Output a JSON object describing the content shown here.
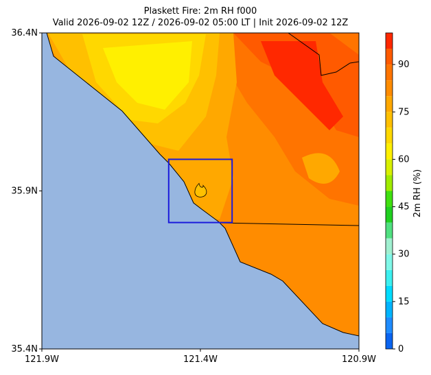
{
  "title": "Plaskett Fire: 2m RH f000",
  "subtitle": "Valid 2026-09-02 12Z / 2026-09-02 05:00 LT | Init 2026-09-02 12Z",
  "map": {
    "xlim": [
      -121.9,
      -120.9
    ],
    "ylim": [
      35.4,
      36.4
    ],
    "xticks": [
      {
        "value": -121.9,
        "label": "121.9W"
      },
      {
        "value": -121.4,
        "label": "121.4W"
      },
      {
        "value": -120.9,
        "label": "120.9W"
      }
    ],
    "yticks": [
      {
        "value": 35.4,
        "label": "35.4N"
      },
      {
        "value": 35.9,
        "label": "35.9N"
      },
      {
        "value": 36.4,
        "label": "36.4N"
      }
    ],
    "box": {
      "color": "#1a1adc",
      "lon": [
        -121.5,
        -121.3
      ],
      "lat": [
        35.8,
        36.0
      ]
    },
    "fire": {
      "lon": -121.4,
      "lat": 35.9
    }
  },
  "colorbar": {
    "label": "2m RH (%)",
    "lim": [
      0,
      100
    ],
    "ticks": [
      0,
      15,
      30,
      45,
      60,
      75,
      90
    ],
    "levels": [
      0,
      5,
      10,
      15,
      20,
      25,
      30,
      35,
      40,
      45,
      50,
      55,
      60,
      65,
      70,
      75,
      80,
      85,
      90,
      95,
      100
    ],
    "colors": [
      "#0a64f0",
      "#1e8cff",
      "#00b4ff",
      "#00dcff",
      "#3cf0f0",
      "#80f8e8",
      "#a0f0d0",
      "#50e080",
      "#20d020",
      "#40e010",
      "#a0ec00",
      "#d8f000",
      "#fff000",
      "#ffd800",
      "#ffc000",
      "#ffa800",
      "#ff8c00",
      "#ff7400",
      "#ff5a00",
      "#ff2800"
    ]
  }
}
